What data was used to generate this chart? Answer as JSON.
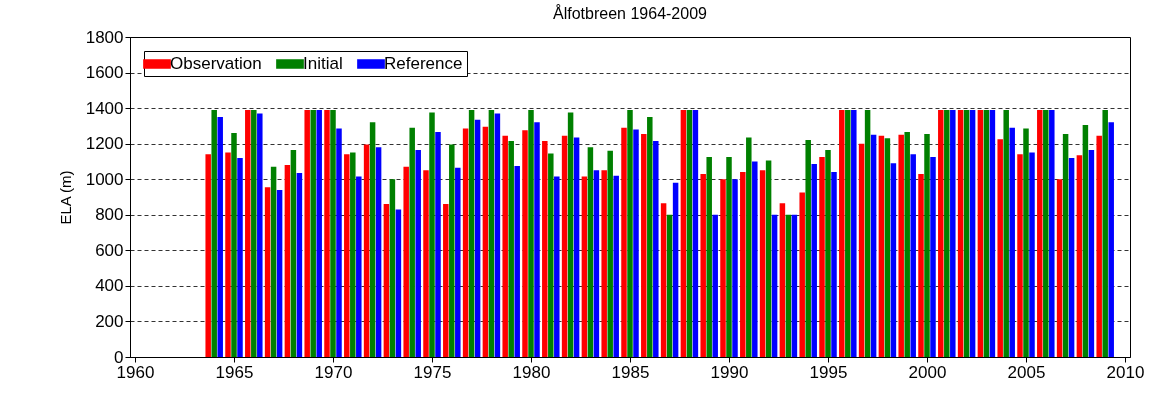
{
  "chart_data": {
    "type": "bar",
    "title": "Ålfotbreen 1964-2009",
    "ylabel": "ELA (m)",
    "x": [
      1964,
      1965,
      1966,
      1967,
      1968,
      1969,
      1970,
      1971,
      1972,
      1973,
      1974,
      1975,
      1976,
      1977,
      1978,
      1979,
      1980,
      1981,
      1982,
      1983,
      1984,
      1985,
      1986,
      1987,
      1988,
      1989,
      1990,
      1991,
      1992,
      1993,
      1994,
      1995,
      1996,
      1997,
      1998,
      1999,
      2000,
      2001,
      2002,
      2003,
      2004,
      2005,
      2006,
      2007,
      2008,
      2009
    ],
    "series": [
      {
        "name": "Observation",
        "color": "#ff0000",
        "values": [
          1140,
          1150,
          1390,
          955,
          1080,
          1390,
          1390,
          1140,
          1195,
          860,
          1070,
          1050,
          860,
          1285,
          1295,
          1245,
          1275,
          1215,
          1245,
          1015,
          1050,
          1290,
          1255,
          865,
          1390,
          1030,
          1000,
          1040,
          1050,
          865,
          925,
          1125,
          1390,
          1200,
          1245,
          1250,
          1030,
          1390,
          1390,
          1390,
          1225,
          1140,
          1390,
          1000,
          1135,
          1245
        ]
      },
      {
        "name": "Initial",
        "color": "#008000",
        "values": [
          1390,
          1260,
          1390,
          1070,
          1165,
          1390,
          1390,
          1150,
          1320,
          1000,
          1290,
          1375,
          1195,
          1390,
          1390,
          1215,
          1390,
          1145,
          1375,
          1180,
          1160,
          1390,
          1350,
          800,
          1390,
          1125,
          1125,
          1235,
          1105,
          800,
          1220,
          1165,
          1390,
          1390,
          1230,
          1265,
          1255,
          1390,
          1390,
          1390,
          1390,
          1285,
          1390,
          1255,
          1305,
          1390
        ]
      },
      {
        "name": "Reference",
        "color": "#0000ff",
        "values": [
          1350,
          1120,
          1370,
          940,
          1035,
          1390,
          1285,
          1015,
          1180,
          830,
          1165,
          1265,
          1065,
          1335,
          1370,
          1075,
          1320,
          1015,
          1235,
          1050,
          1020,
          1280,
          1215,
          980,
          1390,
          800,
          1000,
          1100,
          800,
          800,
          1085,
          1040,
          1390,
          1250,
          1090,
          1140,
          1125,
          1390,
          1390,
          1390,
          1290,
          1150,
          1390,
          1120,
          1165,
          1320
        ]
      }
    ],
    "xlim": [
      1960,
      2010
    ],
    "xticks": [
      1960,
      1965,
      1970,
      1975,
      1980,
      1985,
      1990,
      1995,
      2000,
      2005,
      2010
    ],
    "ylim": [
      0,
      1800
    ],
    "yticks": [
      0,
      200,
      400,
      600,
      800,
      1000,
      1200,
      1400,
      1600,
      1800
    ],
    "grid": "y",
    "legend": "top left"
  }
}
